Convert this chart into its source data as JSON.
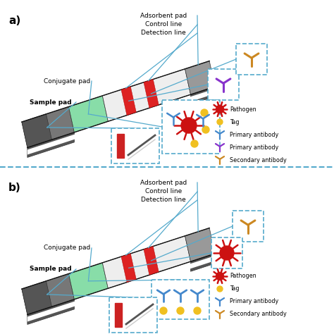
{
  "bg_color": "#ffffff",
  "annotation_color": "#55aacc",
  "strip_color_gray1": "#777777",
  "strip_color_gray2": "#999999",
  "strip_color_gray_dark": "#555555",
  "strip_color_green": "#88dda8",
  "strip_color_green_dark": "#60b880",
  "strip_color_white": "#eeeeee",
  "strip_color_white_dark": "#cccccc",
  "strip_color_red": "#dd2222",
  "strip_color_black": "#222222",
  "pathogen_color": "#cc1111",
  "tag_color": "#f0c020",
  "ab_blue": "#4488cc",
  "ab_purple": "#8833cc",
  "ab_gold": "#cc8822",
  "legend_a": [
    "Pathogen",
    "Tag",
    "Primary antibody",
    "Primary antibody",
    "Secondary antibody"
  ],
  "legend_b": [
    "Pathogen",
    "Tag",
    "Primary antibody",
    "Secondary antibody"
  ],
  "legend_a_colors": [
    "#cc1111",
    "#f0c020",
    "#4488cc",
    "#8833cc",
    "#cc8822"
  ],
  "legend_b_colors": [
    "#cc1111",
    "#f0c020",
    "#4488cc",
    "#cc8822"
  ],
  "legend_a_shapes": [
    "pathogen",
    "tag",
    "Y",
    "Y",
    "Y"
  ],
  "legend_b_shapes": [
    "pathogen",
    "tag",
    "Y",
    "Y"
  ]
}
